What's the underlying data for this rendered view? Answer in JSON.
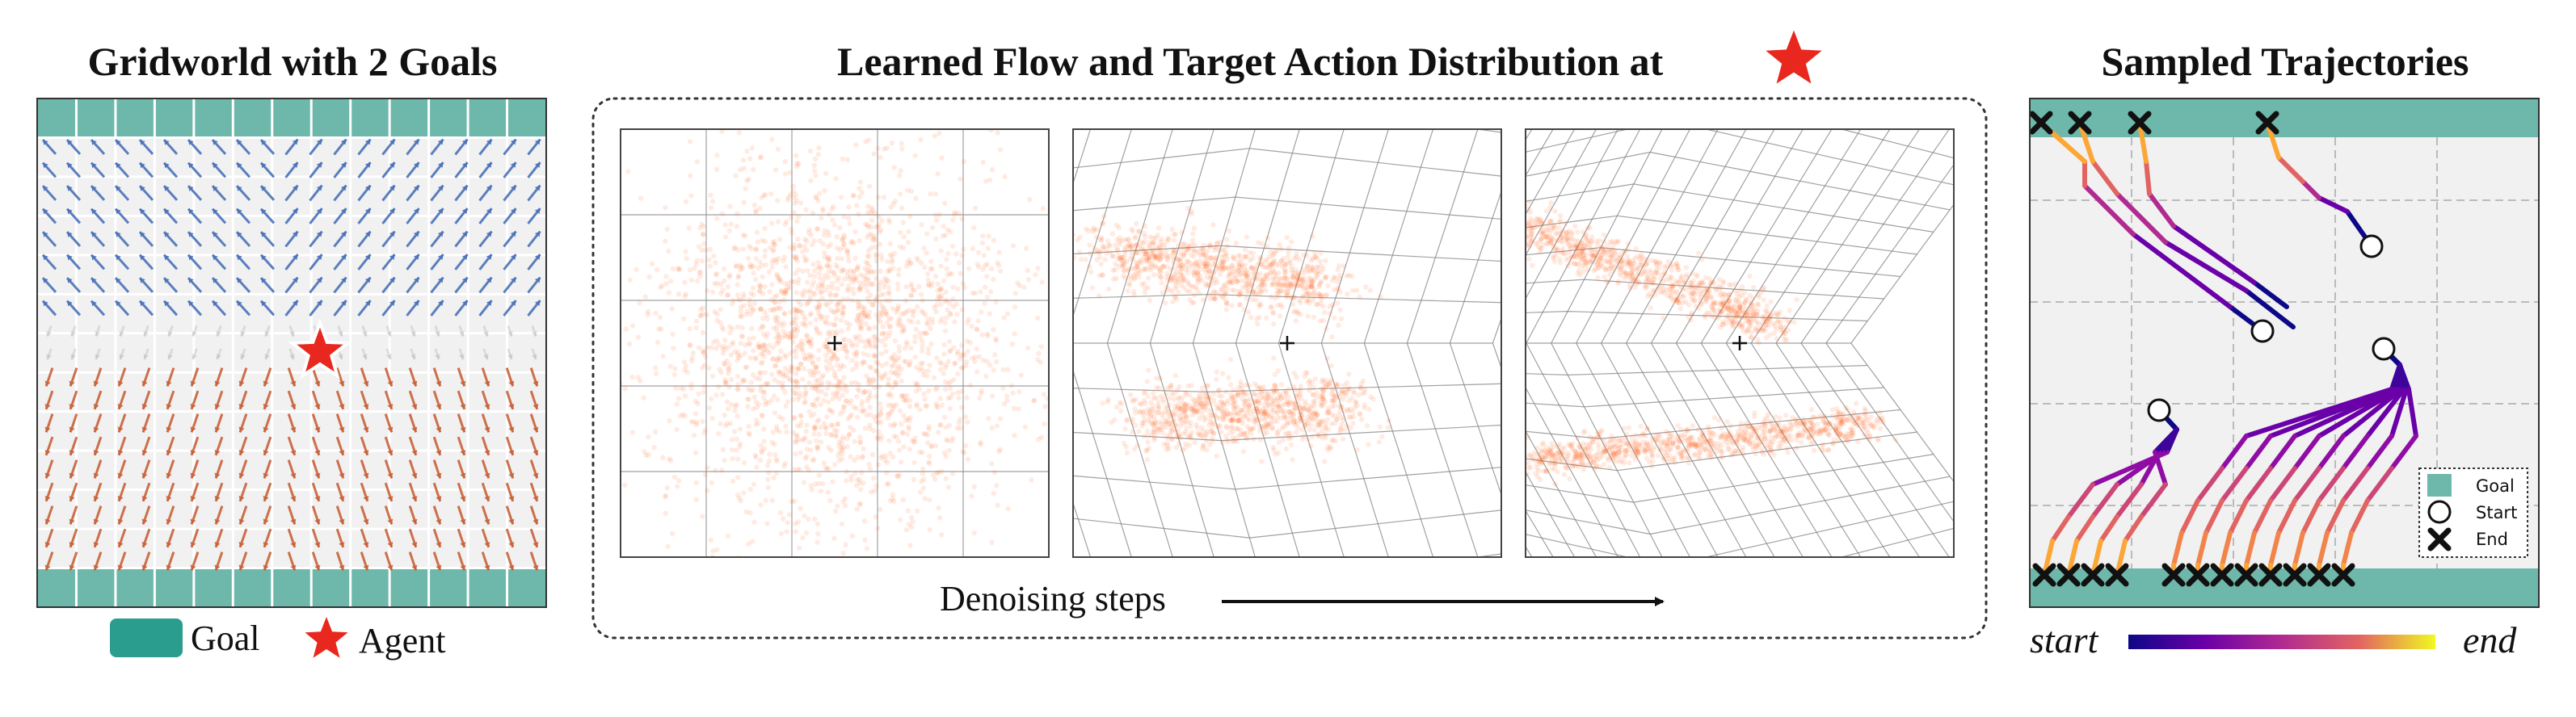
{
  "panels": {
    "gridworld": {
      "title": "Gridworld with 2 Goals"
    },
    "flow": {
      "title": "Learned Flow and Target Action Distribution at",
      "steps_label": "Denoising steps"
    },
    "trajectories": {
      "title": "Sampled Trajectories"
    }
  },
  "legend_bottom": {
    "goal": "Goal",
    "agent": "Agent"
  },
  "traj_legend": {
    "goal": "Goal",
    "start": "Start",
    "end": "End"
  },
  "colorbar": {
    "start": "start",
    "end": "end"
  },
  "colors": {
    "goal": "#6db8aa",
    "goal_dark": "#2a9d8f",
    "arrow_up": "#4a72b8",
    "arrow_down": "#c8623a",
    "star": "#e8281e",
    "particle": "#ff5a14"
  },
  "icons": {
    "agent": "star-icon",
    "goal": "goal-square-icon",
    "start": "circle-icon",
    "end": "x-mark-icon"
  }
}
